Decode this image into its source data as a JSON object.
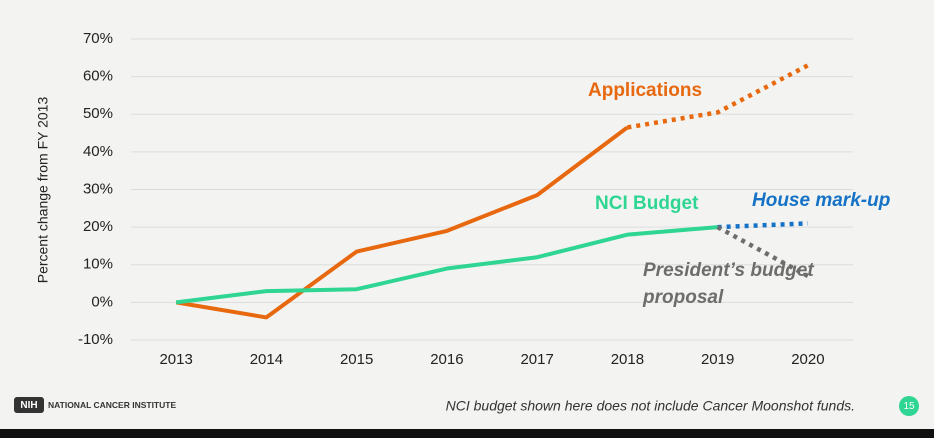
{
  "chart_data": {
    "type": "line",
    "y_label": "Percent change from FY 2013",
    "categories": [
      "2013",
      "2014",
      "2015",
      "2016",
      "2017",
      "2018",
      "2019",
      "2020"
    ],
    "series": [
      {
        "name": "Applications",
        "color": "#e8680f",
        "dashed": false,
        "values": [
          0,
          -4,
          13.5,
          19,
          28.5,
          46.5,
          null,
          null
        ]
      },
      {
        "color": "#e8680f",
        "dashed": true,
        "values": [
          null,
          null,
          null,
          null,
          null,
          46.5,
          50.5,
          63
        ]
      },
      {
        "name": "NCI Budget",
        "color": "#2fd592",
        "dashed": false,
        "values": [
          0,
          3,
          3.5,
          9,
          12,
          18,
          20,
          null
        ]
      },
      {
        "name": "House mark-up",
        "color": "#1672c6",
        "dashed": true,
        "values": [
          null,
          null,
          null,
          null,
          null,
          null,
          20,
          21
        ]
      },
      {
        "name": "President’s budget proposal",
        "color": "#6d6d6d",
        "dashed": true,
        "values": [
          null,
          null,
          null,
          null,
          null,
          null,
          20,
          7
        ]
      }
    ],
    "ylim": [
      -10,
      70
    ],
    "yticks": [
      {
        "value": -10,
        "label": "-10%"
      },
      {
        "value": 0,
        "label": "0%"
      },
      {
        "value": 10,
        "label": "10%"
      },
      {
        "value": 20,
        "label": "20%"
      },
      {
        "value": 30,
        "label": "30%"
      },
      {
        "value": 40,
        "label": "40%"
      },
      {
        "value": 50,
        "label": "50%"
      },
      {
        "value": 60,
        "label": "60%"
      },
      {
        "value": 70,
        "label": "70%"
      }
    ],
    "grid": true,
    "footnote": "NCI budget shown here does not include Cancer Moonshot funds."
  },
  "footer": {
    "logo": "NIH",
    "organization": "NATIONAL CANCER INSTITUTE",
    "page": "15"
  }
}
